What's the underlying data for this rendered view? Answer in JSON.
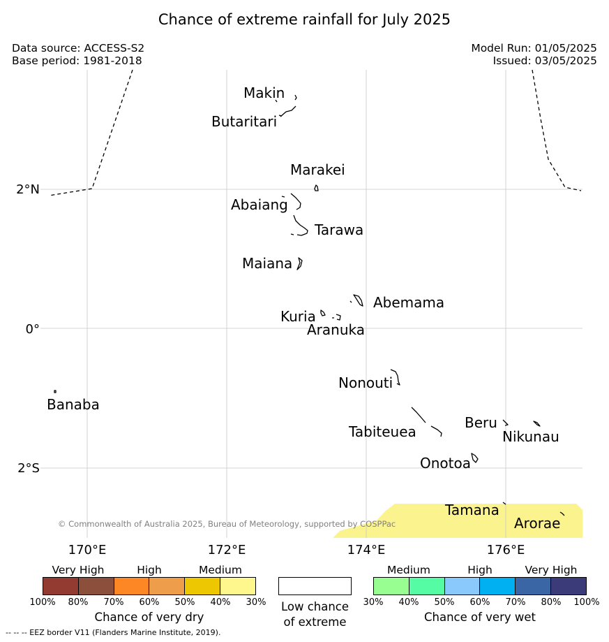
{
  "title": "Chance of extreme rainfall for July 2025",
  "meta": {
    "data_source": "Data source: ACCESS-S2",
    "base_period": "Base period: 1981-2018",
    "model_run": "Model Run: 01/05/2025",
    "issued": "Issued: 03/05/2025"
  },
  "map": {
    "lon_range": [
      169.3,
      177.1
    ],
    "lat_range": [
      -3.0,
      3.7
    ],
    "grid_lons": [
      170,
      172,
      174,
      176
    ],
    "grid_lats": [
      2,
      0,
      -2
    ],
    "lon_labels": [
      "170°E",
      "172°E",
      "174°E",
      "176°E"
    ],
    "lat_labels": [
      "2°N",
      "0°",
      "2°S"
    ],
    "copyright": "© Commonwealth of Australia 2025, Bureau of Meteorology, supported by COSPPac",
    "shading_color": "#fbf38e",
    "shading_category": "Medium",
    "islands": [
      {
        "label": "Makin"
      },
      {
        "label": "Butaritari"
      },
      {
        "label": "Marakei"
      },
      {
        "label": "Abaiang"
      },
      {
        "label": "Tarawa"
      },
      {
        "label": "Maiana"
      },
      {
        "label": "Abemama"
      },
      {
        "label": "Kuria"
      },
      {
        "label": "Aranuka"
      },
      {
        "label": "Nonouti"
      },
      {
        "label": "Banaba"
      },
      {
        "label": "Beru"
      },
      {
        "label": "Tabiteuea"
      },
      {
        "label": "Nikunau"
      },
      {
        "label": "Onotoa"
      },
      {
        "label": "Tamana"
      },
      {
        "label": "Arorae"
      }
    ]
  },
  "legend": {
    "dry": {
      "headers": [
        "Very High",
        "High",
        "Medium"
      ],
      "colors": [
        "#933b31",
        "#8c4f3b",
        "#fd8724",
        "#ee9e4b",
        "#eec703",
        "#fef78e"
      ],
      "ticks": [
        "100%",
        "80%",
        "70%",
        "60%",
        "50%",
        "40%",
        "30%"
      ],
      "caption": "Chance of very dry"
    },
    "low": {
      "color": "#ffffff",
      "caption_line1": "Low chance",
      "caption_line2": "of extreme"
    },
    "wet": {
      "headers": [
        "Medium",
        "High",
        "Very High"
      ],
      "colors": [
        "#99fe92",
        "#56fca4",
        "#89c9fc",
        "#00b0f0",
        "#3a66a6",
        "#3c3b7a"
      ],
      "ticks": [
        "30%",
        "40%",
        "50%",
        "60%",
        "70%",
        "80%",
        "100%"
      ],
      "caption": "Chance of very wet"
    }
  },
  "eez_note": "--  --  -- EEZ border V11 (Flanders Marine Institute, 2019)."
}
